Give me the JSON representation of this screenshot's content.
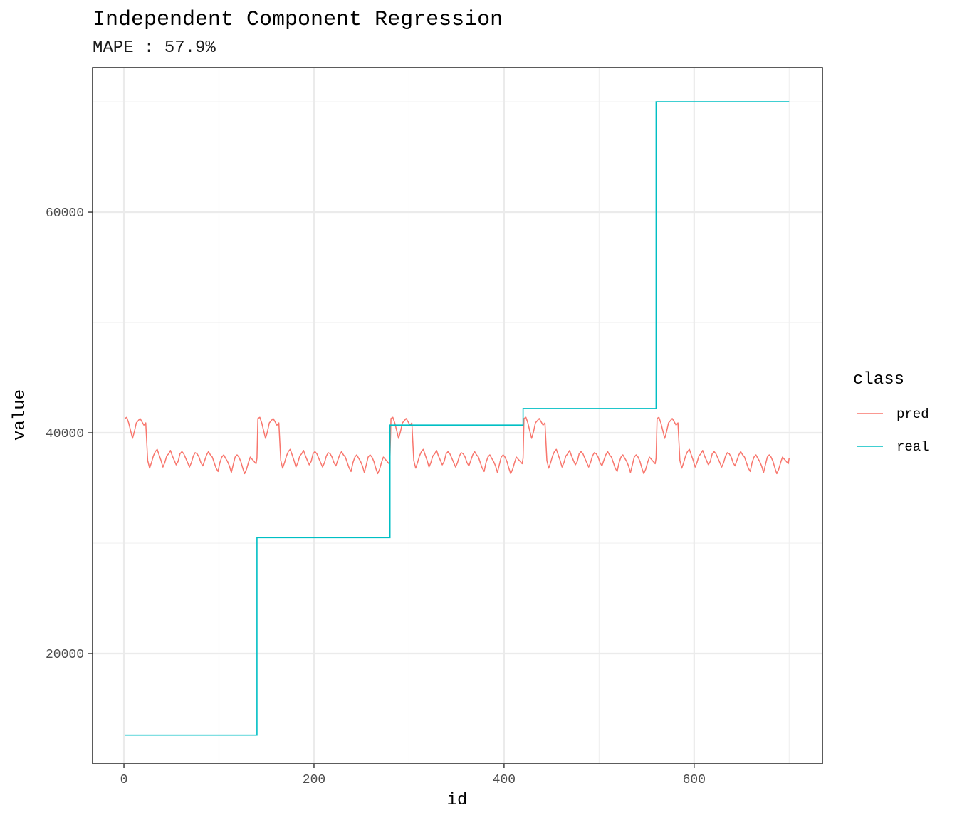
{
  "chart_data": {
    "type": "line",
    "title": "Independent Component Regression",
    "subtitle": "MAPE : 57.9%",
    "xlabel": "id",
    "ylabel": "value",
    "xlim": [
      -33,
      735
    ],
    "ylim": [
      10000,
      73100
    ],
    "x_ticks": [
      0,
      200,
      400,
      600
    ],
    "x_tick_labels": [
      "0",
      "200",
      "400",
      "600"
    ],
    "y_ticks": [
      20000,
      40000,
      60000
    ],
    "y_tick_labels": [
      "20000",
      "40000",
      "60000"
    ],
    "grid": true,
    "legend": {
      "title": "class",
      "placement": "right",
      "entries": [
        {
          "name": "pred",
          "color": "#F8766D"
        },
        {
          "name": "real",
          "color": "#00BFC4"
        }
      ]
    },
    "series": [
      {
        "name": "pred",
        "color": "#F8766D",
        "segment_length": 140,
        "x_start": 1,
        "x_end": 700,
        "pattern_x": [
          0,
          2,
          4,
          6,
          8,
          10,
          12,
          14,
          16,
          18,
          20,
          22,
          24,
          26,
          28,
          30,
          32,
          34,
          36,
          38,
          40,
          42,
          44,
          46,
          48,
          50,
          52,
          54,
          56,
          58,
          60,
          62,
          64,
          66,
          68,
          70,
          72,
          74,
          76,
          78,
          80,
          82,
          84,
          86,
          88,
          90,
          92,
          94,
          96,
          98,
          100,
          102,
          104,
          106,
          108,
          110,
          112,
          114,
          116,
          118,
          120,
          122,
          124,
          126,
          128,
          130,
          132,
          134,
          136,
          138,
          139
        ],
        "pattern_y": [
          41300,
          41400,
          40900,
          40200,
          39500,
          40100,
          40900,
          41100,
          41300,
          41000,
          40700,
          40900,
          37500,
          36800,
          37300,
          37900,
          38300,
          38500,
          38000,
          37500,
          36900,
          37300,
          37900,
          38100,
          38400,
          37900,
          37500,
          37100,
          37400,
          38100,
          38300,
          38100,
          37700,
          37300,
          36900,
          37300,
          37900,
          38200,
          38100,
          37800,
          37300,
          37000,
          37500,
          38000,
          38300,
          38000,
          37800,
          37300,
          36800,
          36500,
          37300,
          37800,
          38000,
          37700,
          37400,
          37000,
          36400,
          37100,
          37800,
          38000,
          37800,
          37400,
          36800,
          36300,
          36700,
          37300,
          37800,
          37600,
          37400,
          37200,
          37700
        ]
      },
      {
        "name": "real",
        "color": "#00BFC4",
        "steps": [
          {
            "x_start": 1,
            "x_end": 140,
            "value": 12600
          },
          {
            "x_start": 140,
            "x_end": 280,
            "value": 30500
          },
          {
            "x_start": 280,
            "x_end": 420,
            "value": 40700
          },
          {
            "x_start": 420,
            "x_end": 560,
            "value": 42200
          },
          {
            "x_start": 560,
            "x_end": 700,
            "value": 70000
          }
        ]
      }
    ]
  }
}
